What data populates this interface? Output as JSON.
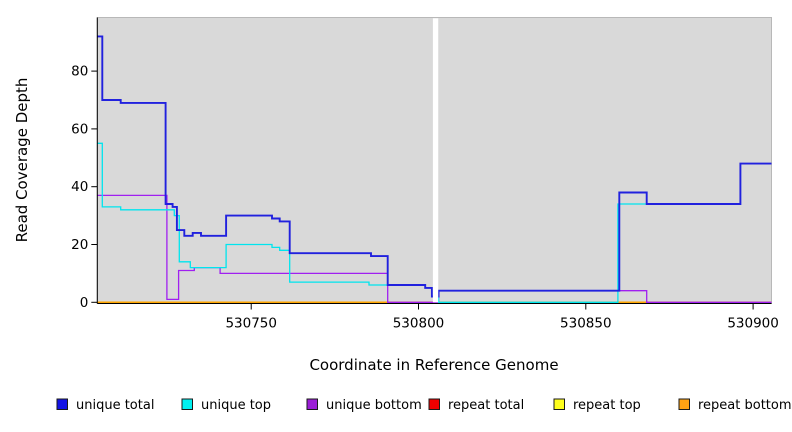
{
  "chart_data": {
    "type": "line",
    "subtype": "step-coverage-plot",
    "title": "",
    "xlabel": "Coordinate in Reference Genome",
    "ylabel": "Read Coverage Depth",
    "xlim": [
      530704,
      530905.5
    ],
    "ylim": [
      0,
      98.5
    ],
    "x_ticks": [
      530750,
      530800,
      530850,
      530900
    ],
    "y_ticks": [
      0,
      20,
      40,
      60,
      80
    ],
    "grid": false,
    "panel_bg": "#d9d9d9",
    "panel_border": "#b8b8b8",
    "no_data_gap_x": [
      530804.3,
      530805.9
    ],
    "legend_position": "bottom",
    "series": [
      {
        "name": "unique total",
        "color": "#2121DE",
        "line_width": 1.9,
        "points": [
          [
            530704,
            92
          ],
          [
            530705.5,
            70
          ],
          [
            530711,
            69
          ],
          [
            530724.4,
            34
          ],
          [
            530726.5,
            33
          ],
          [
            530727.8,
            25
          ],
          [
            530730,
            23
          ],
          [
            530732.5,
            24
          ],
          [
            530735,
            23
          ],
          [
            530742.5,
            30
          ],
          [
            530756.2,
            29
          ],
          [
            530758.5,
            28
          ],
          [
            530761.5,
            17
          ],
          [
            530785.8,
            16
          ],
          [
            530790.8,
            6
          ],
          [
            530802,
            5
          ],
          [
            530804,
            2
          ],
          [
            530806,
            4
          ],
          [
            530860,
            38
          ],
          [
            530868.2,
            34
          ],
          [
            530896.2,
            48
          ]
        ]
      },
      {
        "name": "unique top",
        "color": "#00E5EE",
        "line_width": 1.3,
        "points": [
          [
            530704,
            55
          ],
          [
            530705.5,
            33
          ],
          [
            530711,
            32
          ],
          [
            530727,
            30
          ],
          [
            530728.5,
            14
          ],
          [
            530731.8,
            12
          ],
          [
            530742.5,
            20
          ],
          [
            530756.2,
            19
          ],
          [
            530758.5,
            18
          ],
          [
            530761.5,
            7
          ],
          [
            530785.2,
            6
          ],
          [
            530802,
            5
          ],
          [
            530804,
            2
          ],
          [
            530806,
            0
          ],
          [
            530859.6,
            34
          ],
          [
            530896.2,
            48
          ]
        ]
      },
      {
        "name": "unique bottom",
        "color": "#A020F0",
        "line_width": 1.3,
        "points": [
          [
            530704,
            37
          ],
          [
            530724.8,
            1
          ],
          [
            530728.3,
            11
          ],
          [
            530733,
            12
          ],
          [
            530740.7,
            10
          ],
          [
            530790.8,
            0
          ],
          [
            530806,
            4
          ],
          [
            530868.2,
            0
          ]
        ]
      },
      {
        "name": "repeat total",
        "color": "#E60000",
        "line_width": 1.1,
        "points": [
          [
            530704,
            0
          ]
        ]
      },
      {
        "name": "repeat top",
        "color": "#FFFF00",
        "line_width": 1.1,
        "points": [
          [
            530704,
            0
          ]
        ]
      },
      {
        "name": "repeat bottom",
        "color": "#FFA500",
        "line_width": 1.6,
        "points": [
          [
            530704,
            0
          ]
        ]
      }
    ]
  },
  "legend": {
    "items": [
      {
        "label": "unique total",
        "color": "#1414E6"
      },
      {
        "label": "unique top",
        "color": "#00F0F0"
      },
      {
        "label": "unique bottom",
        "color": "#9B1FD6"
      },
      {
        "label": "repeat total",
        "color": "#EE0000"
      },
      {
        "label": "repeat top",
        "color": "#FFFF1E"
      },
      {
        "label": "repeat bottom",
        "color": "#FFA113"
      }
    ]
  }
}
